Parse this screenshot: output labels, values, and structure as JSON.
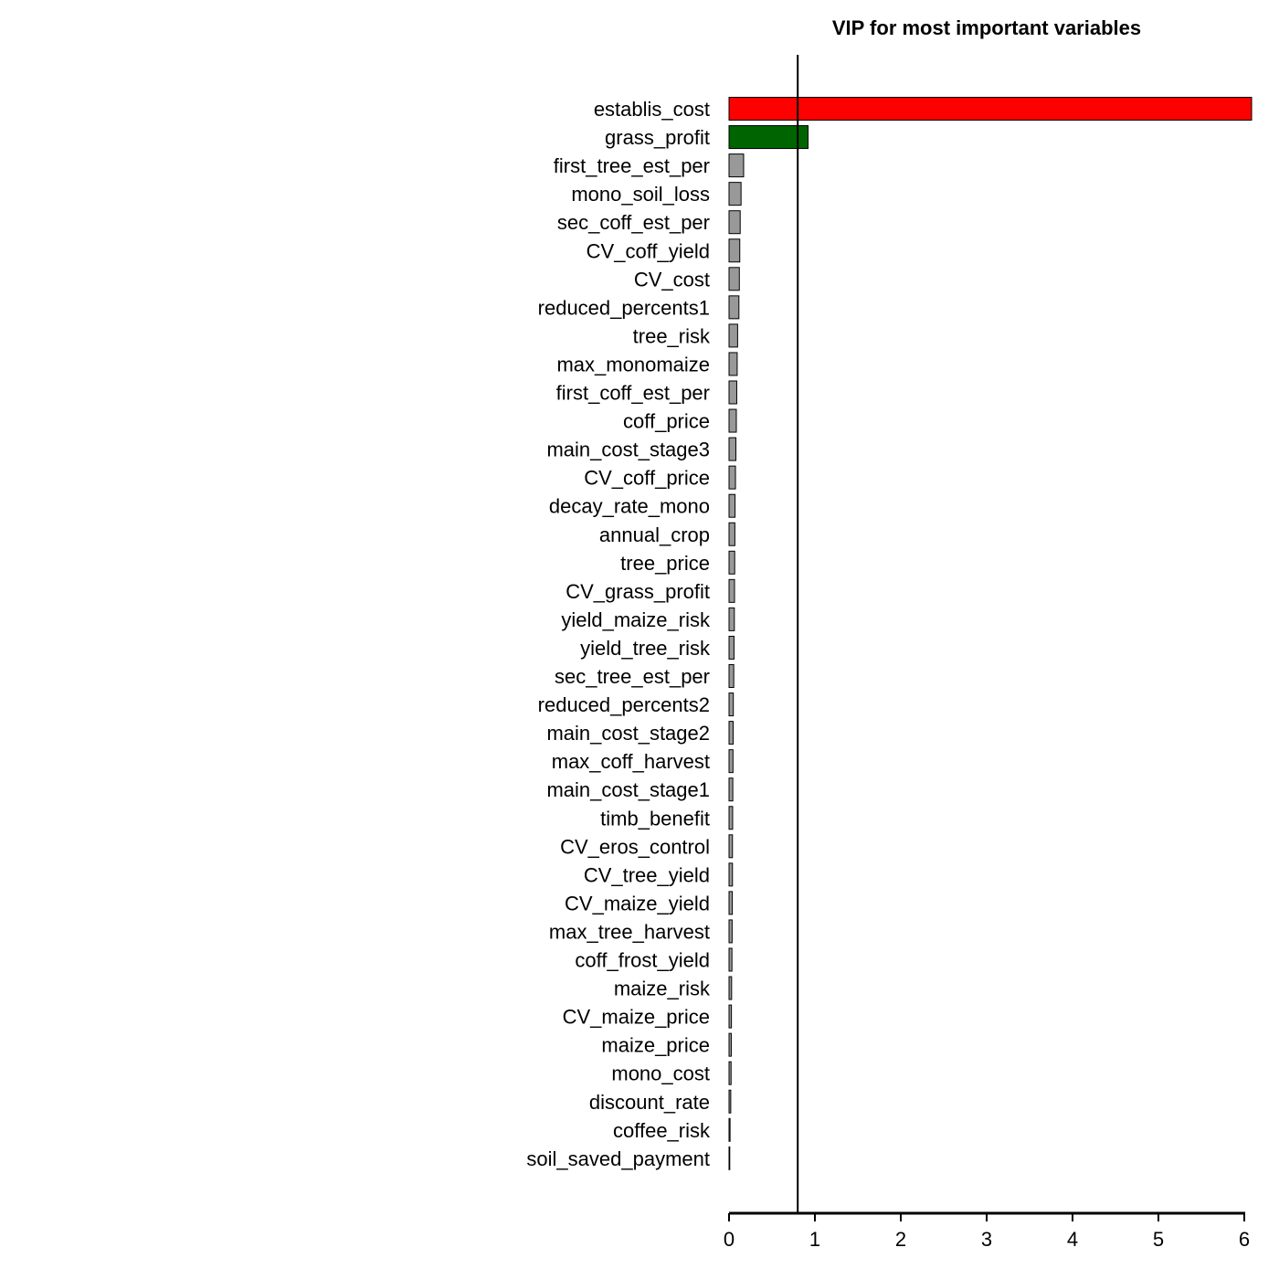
{
  "chart_data": {
    "type": "bar",
    "orientation": "horizontal",
    "title": "VIP for most important variables",
    "xlabel": "",
    "ylabel": "",
    "xlim": [
      0,
      6
    ],
    "x_ticks": [
      "0",
      "1",
      "2",
      "3",
      "4",
      "5",
      "6"
    ],
    "threshold": 0.8,
    "grid": false,
    "legend": "none",
    "categories": [
      "establis_cost",
      "grass_profit",
      "first_tree_est_per",
      "mono_soil_loss",
      "sec_coff_est_per",
      "CV_coff_yield",
      "CV_cost",
      "reduced_percents1",
      "tree_risk",
      "max_monomaize",
      "first_coff_est_per",
      "coff_price",
      "main_cost_stage3",
      "CV_coff_price",
      "decay_rate_mono",
      "annual_crop",
      "tree_price",
      "CV_grass_profit",
      "yield_maize_risk",
      "yield_tree_risk",
      "sec_tree_est_per",
      "reduced_percents2",
      "main_cost_stage2",
      "max_coff_harvest",
      "main_cost_stage1",
      "timb_benefit",
      "CV_eros_control",
      "CV_tree_yield",
      "CV_maize_yield",
      "max_tree_harvest",
      "coff_frost_yield",
      "maize_risk",
      "CV_maize_price",
      "maize_price",
      "mono_cost",
      "discount_rate",
      "coffee_risk",
      "soil_saved_payment"
    ],
    "values": [
      6.1,
      0.92,
      0.17,
      0.14,
      0.13,
      0.125,
      0.12,
      0.115,
      0.1,
      0.095,
      0.09,
      0.085,
      0.08,
      0.075,
      0.07,
      0.068,
      0.066,
      0.064,
      0.062,
      0.058,
      0.055,
      0.05,
      0.048,
      0.046,
      0.044,
      0.042,
      0.04,
      0.04,
      0.038,
      0.036,
      0.034,
      0.03,
      0.028,
      0.026,
      0.024,
      0.02,
      0.012,
      0.004
    ],
    "colors": {
      "highlight_top": "#ff0000",
      "highlight_second": "#006400",
      "default": "#999999",
      "outline": "#000000"
    }
  }
}
